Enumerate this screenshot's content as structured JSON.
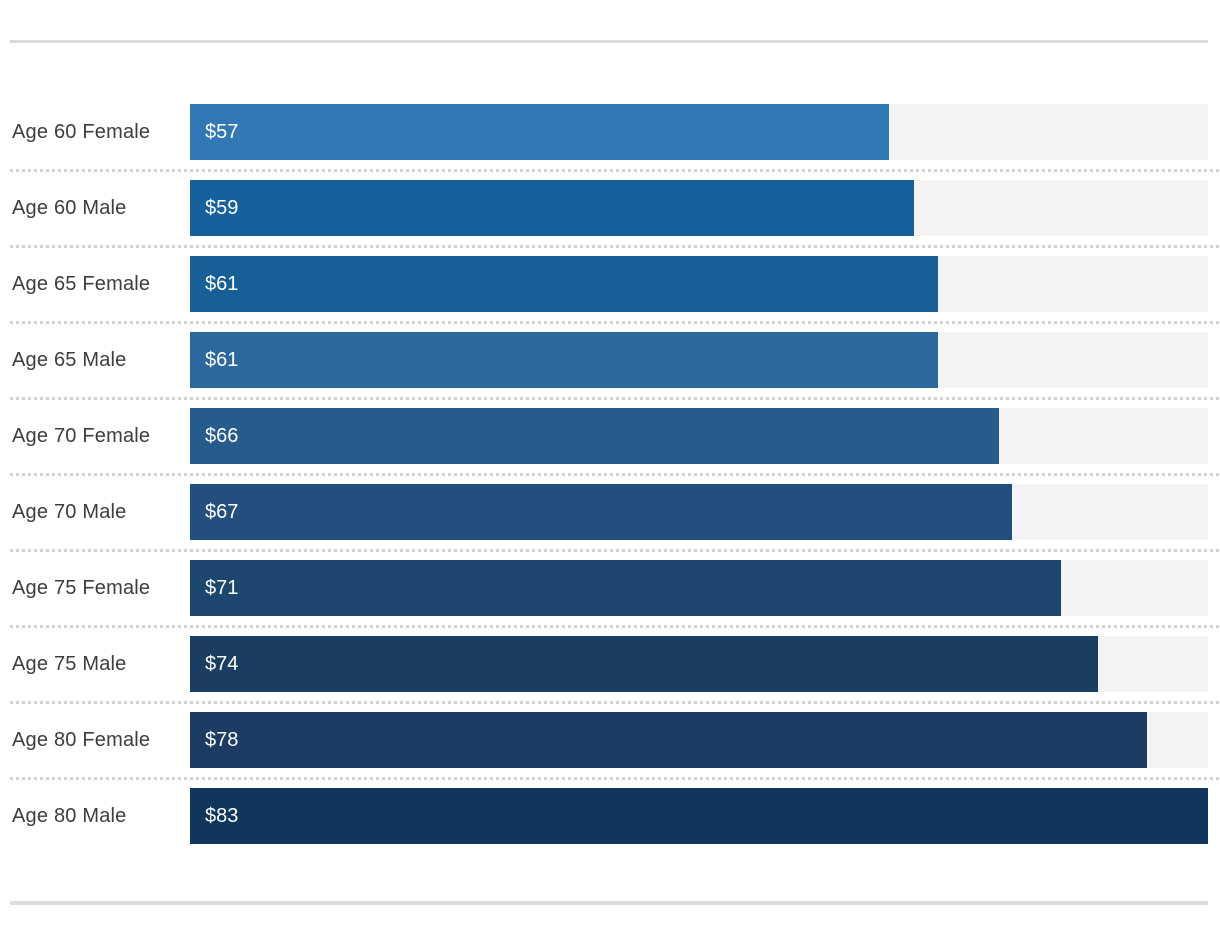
{
  "chart_data": {
    "type": "bar",
    "orientation": "horizontal",
    "title": "",
    "xlabel": "",
    "ylabel": "",
    "xlim": [
      0,
      83
    ],
    "grid": false,
    "legend": false,
    "categories": [
      "Age 60 Female",
      "Age 60 Male",
      "Age 65 Female",
      "Age 65 Male",
      "Age 70 Female",
      "Age 70 Male",
      "Age 75 Female",
      "Age 75 Male",
      "Age 80 Female",
      "Age 80 Male"
    ],
    "values": [
      57,
      59,
      61,
      61,
      66,
      67,
      71,
      74,
      78,
      83
    ],
    "value_labels": [
      "$57",
      "$59",
      "$61",
      "$61",
      "$66",
      "$67",
      "$71",
      "$74",
      "$78",
      "$83"
    ],
    "bar_colors": [
      "#3378b6",
      "#16619b",
      "#175f96",
      "#2c689e",
      "#265b8c",
      "#234f7e",
      "#1d476e",
      "#1b3d62",
      "#1c3c63",
      "#10365c"
    ]
  },
  "style_colors": {
    "track": "#f3f3f3",
    "separator_dots": "#d4d4d4",
    "top_rule": "#dadada",
    "bottom_rule": "#dcdcdc",
    "category_label": "#3d3d3d",
    "value_label": "#ffffff",
    "background": "#ffffff"
  }
}
